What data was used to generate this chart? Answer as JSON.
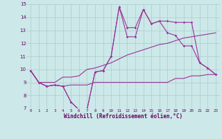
{
  "title": "",
  "xlabel": "Windchill (Refroidissement éolien,°C)",
  "ylabel": "",
  "bg_color": "#cce8e8",
  "grid_color": "#aacccc",
  "line_color": "#993399",
  "xlim": [
    -0.5,
    23.5
  ],
  "ylim": [
    7,
    15
  ],
  "yticks": [
    7,
    8,
    9,
    10,
    11,
    12,
    13,
    14,
    15
  ],
  "xticks": [
    0,
    1,
    2,
    3,
    4,
    5,
    6,
    7,
    8,
    9,
    10,
    11,
    12,
    13,
    14,
    15,
    16,
    17,
    18,
    19,
    20,
    21,
    22,
    23
  ],
  "series": {
    "main": [
      9.9,
      9.0,
      8.7,
      8.8,
      8.7,
      7.5,
      6.9,
      6.9,
      9.8,
      9.9,
      11.0,
      14.8,
      12.5,
      12.5,
      14.6,
      13.5,
      13.7,
      12.8,
      12.6,
      11.8,
      11.8,
      10.5,
      10.1,
      9.6
    ],
    "upper": [
      9.9,
      9.0,
      8.7,
      8.8,
      8.7,
      7.5,
      6.9,
      6.9,
      9.8,
      9.9,
      11.0,
      14.8,
      13.2,
      13.2,
      14.6,
      13.5,
      13.7,
      13.7,
      13.6,
      13.6,
      13.6,
      10.5,
      10.1,
      9.6
    ],
    "lower": [
      9.9,
      9.0,
      8.7,
      8.8,
      8.7,
      8.8,
      8.8,
      8.8,
      9.0,
      9.0,
      9.0,
      9.0,
      9.0,
      9.0,
      9.0,
      9.0,
      9.0,
      9.0,
      9.3,
      9.3,
      9.5,
      9.5,
      9.6,
      9.6
    ],
    "trend": [
      9.9,
      9.0,
      9.0,
      9.0,
      9.4,
      9.4,
      9.5,
      10.0,
      10.1,
      10.3,
      10.5,
      10.8,
      11.1,
      11.3,
      11.5,
      11.7,
      11.9,
      12.0,
      12.2,
      12.4,
      12.5,
      12.6,
      12.7,
      12.8
    ]
  }
}
